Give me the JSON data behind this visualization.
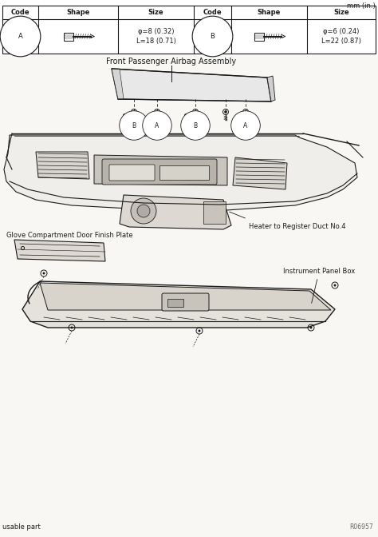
{
  "bg_color": "#ffffff",
  "table_bg": "#ffffff",
  "line_color": "#1a1a1a",
  "text_color": "#1a1a1a",
  "unit_label": "mm (in.)",
  "table_header": [
    "Code",
    "Shape",
    "Size",
    "Code",
    "Shape",
    "Size"
  ],
  "row_A_code": "A",
  "row_A_size": "φ=8 (0.32)\nL=18 (0.71)",
  "row_B_code": "B",
  "row_B_size": "φ=6 (0.24)\nL=22 (0.87)",
  "label_airbag": "Front Passenger Airbag Assembly",
  "label_heater": "Heater to Register Duct No.4",
  "label_glove": "Glove Compartment Door Finish Plate",
  "label_instrument": "Instrument Panel Box",
  "label_reusable": "usable part",
  "label_code_ref": "R06957",
  "diagram_bg": "#f5f5f2"
}
